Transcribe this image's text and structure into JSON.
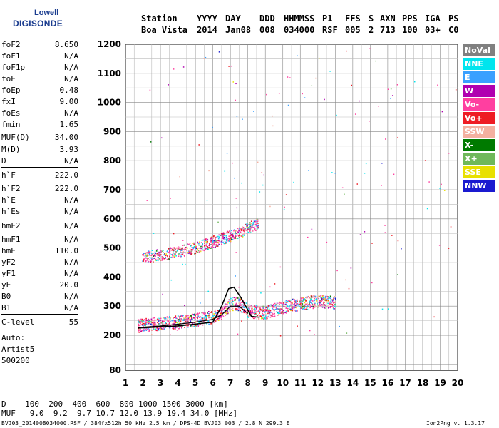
{
  "logo": {
    "line1": "Lowell",
    "line2": "DIGISONDE"
  },
  "header": {
    "row1": [
      "Station",
      "YYYY",
      "DAY",
      "DDD",
      "HHMMSS",
      "P1",
      "FFS",
      "S",
      "AXN",
      "PPS",
      "IGA",
      "PS"
    ],
    "row2": [
      "Boa Vista",
      "2014",
      "Jan08",
      "008",
      "034000",
      "RSF",
      "005",
      "2",
      "713",
      "100",
      "03+",
      "C0"
    ]
  },
  "params": [
    {
      "label": "foF2",
      "value": "8.650"
    },
    {
      "label": "foF1",
      "value": "N/A"
    },
    {
      "label": "foF1p",
      "value": "N/A"
    },
    {
      "label": "foE",
      "value": "N/A"
    },
    {
      "label": "foEp",
      "value": "0.48"
    },
    {
      "label": "fxI",
      "value": "9.00"
    },
    {
      "label": "foEs",
      "value": "N/A"
    },
    {
      "label": "fmin",
      "value": "1.65"
    },
    {
      "label": "MUF(D)",
      "value": "34.00"
    },
    {
      "label": "M(D)",
      "value": "3.93"
    },
    {
      "label": "D",
      "value": "N/A"
    },
    {
      "label": "h`F",
      "value": "222.0"
    },
    {
      "label": "h`F2",
      "value": "222.0"
    },
    {
      "label": "h`E",
      "value": "N/A"
    },
    {
      "label": "h`Es",
      "value": "N/A"
    },
    {
      "label": "hmF2",
      "value": "N/A"
    },
    {
      "label": "hmF1",
      "value": "N/A"
    },
    {
      "label": "hmE",
      "value": "110.0"
    },
    {
      "label": "yF2",
      "value": "N/A"
    },
    {
      "label": "yF1",
      "value": "N/A"
    },
    {
      "label": "yE",
      "value": "20.0"
    },
    {
      "label": "B0",
      "value": "N/A"
    },
    {
      "label": "B1",
      "value": "N/A"
    },
    {
      "label": "C-level",
      "value": "55"
    }
  ],
  "auto": [
    "Auto:",
    "Artist5",
    "500200"
  ],
  "footer": {
    "d_row": "D    100  200  400  600  800 1000 1500 3000 [km]",
    "muf_row": "MUF   9.0  9.2  9.7 10.7 12.0 13.9 19.4 34.0 [MHz]",
    "info": "BVJ03_2014008034000.RSF / 384fx512h 50 kHz 2.5 km / DPS-4D BVJ03 003 / 2.8 N 299.3 E",
    "version": "Ion2Png v. 1.3.17"
  },
  "legend": [
    {
      "name": "NoVal",
      "color": "#808080"
    },
    {
      "name": "NNE",
      "color": "#00e5ee"
    },
    {
      "name": "E",
      "color": "#3aa0ff"
    },
    {
      "name": "W",
      "color": "#b000b0"
    },
    {
      "name": "Vo-",
      "color": "#ff3fa0"
    },
    {
      "name": "Vo+",
      "color": "#ee1c24"
    },
    {
      "name": "SSW",
      "color": "#f4b0a0"
    },
    {
      "name": "X-",
      "color": "#007a00"
    },
    {
      "name": "X+",
      "color": "#6fb85a"
    },
    {
      "name": "SSE",
      "color": "#e8e000"
    },
    {
      "name": "NNW",
      "color": "#1a1ad0"
    }
  ],
  "chart_data": {
    "type": "scatter",
    "xlim": [
      1,
      20
    ],
    "ylim": [
      80,
      1200
    ],
    "x_ticks": [
      1,
      2,
      3,
      4,
      5,
      6,
      7,
      8,
      9,
      10,
      11,
      12,
      13,
      14,
      15,
      16,
      17,
      18,
      19,
      20
    ],
    "y_ticks": [
      80,
      200,
      300,
      400,
      500,
      600,
      700,
      800,
      900,
      1000,
      1100,
      1200
    ],
    "grid": true,
    "legend_position": "right",
    "traces": [
      {
        "name": "F-layer O trace",
        "points": [
          [
            1.7,
            225
          ],
          [
            2,
            228
          ],
          [
            3,
            232
          ],
          [
            4,
            238
          ],
          [
            5,
            245
          ],
          [
            6,
            255
          ],
          [
            6.5,
            270
          ],
          [
            7,
            300
          ],
          [
            7.5,
            300
          ],
          [
            8,
            275
          ],
          [
            9,
            270
          ],
          [
            10,
            290
          ],
          [
            11,
            300
          ],
          [
            12,
            310
          ],
          [
            13,
            305
          ]
        ]
      },
      {
        "name": "Second hop",
        "points": [
          [
            1.9,
            460
          ],
          [
            3,
            470
          ],
          [
            4,
            480
          ],
          [
            5,
            495
          ],
          [
            6,
            515
          ],
          [
            7,
            535
          ],
          [
            8,
            560
          ],
          [
            8.6,
            580
          ]
        ]
      },
      {
        "name": "Profile",
        "points": [
          [
            1.7,
            225
          ],
          [
            4,
            232
          ],
          [
            6,
            245
          ],
          [
            6.5,
            300
          ],
          [
            6.9,
            360
          ],
          [
            7.2,
            365
          ],
          [
            7.6,
            330
          ],
          [
            8.2,
            265
          ],
          [
            8.65,
            262
          ]
        ]
      }
    ]
  }
}
